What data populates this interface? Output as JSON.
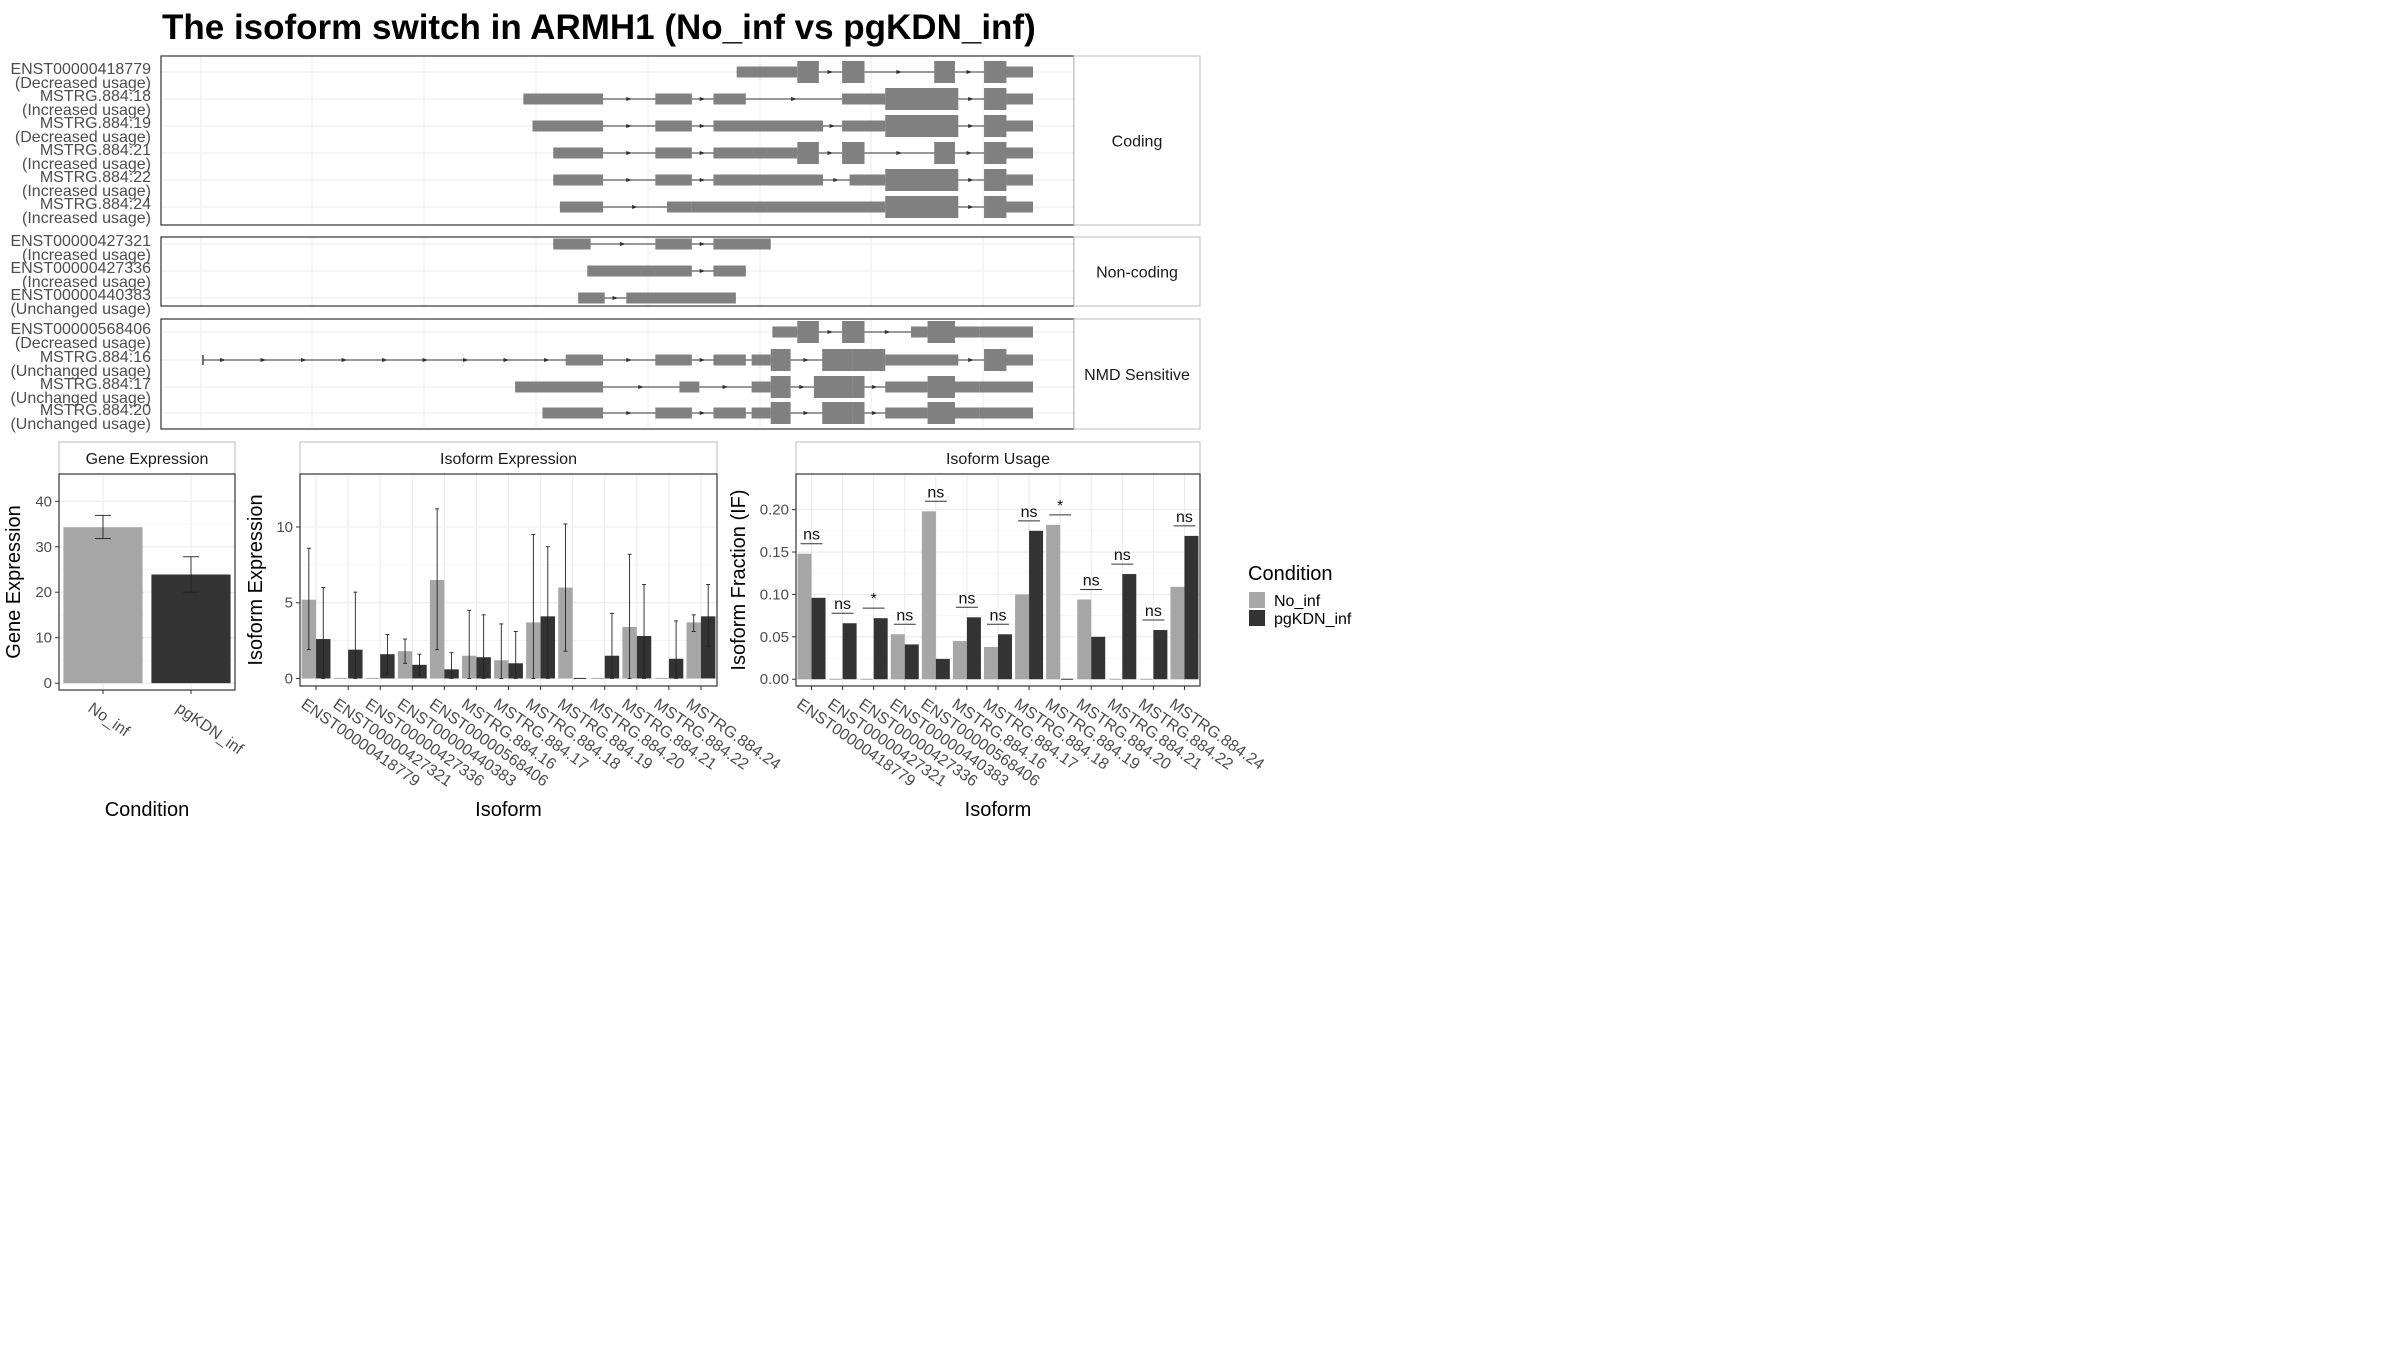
{
  "title": "The isoform switch in ARMH1 (No_inf vs pgKDN_inf)",
  "colors": {
    "No_inf": "#a6a6a6",
    "pgKDN_inf": "#333333",
    "exon": "#808080",
    "strip_text": "#1a1a1a",
    "tick_text": "#4d4d4d"
  },
  "chart_data": [
    {
      "type": "gene_structure",
      "panels": [
        {
          "label": "Coding",
          "tracks": [
            {
              "id": "ENST00000418779",
              "usage": "(Decreased usage)",
              "exons": [
                [
                  0.643,
                  0.716,
                  "utr"
                ],
                [
                  0.716,
                  0.742,
                  "cds"
                ],
                [
                  0.77,
                  0.797,
                  "cds"
                ],
                [
                  0.881,
                  0.906,
                  "cds"
                ],
                [
                  0.941,
                  0.968,
                  "cds"
                ],
                [
                  0.968,
                  1.0,
                  "utr"
                ]
              ]
            },
            {
              "id": "MSTRG.884:18",
              "usage": "(Increased usage)",
              "exons": [
                [
                  0.386,
                  0.482,
                  "utr"
                ],
                [
                  0.545,
                  0.589,
                  "utr"
                ],
                [
                  0.615,
                  0.654,
                  "utr"
                ],
                [
                  0.77,
                  0.822,
                  "utr"
                ],
                [
                  0.822,
                  0.91,
                  "cds"
                ],
                [
                  0.941,
                  0.968,
                  "cds"
                ],
                [
                  0.968,
                  1.0,
                  "utr"
                ]
              ]
            },
            {
              "id": "MSTRG.884:19",
              "usage": "(Decreased usage)",
              "exons": [
                [
                  0.397,
                  0.482,
                  "utr"
                ],
                [
                  0.545,
                  0.589,
                  "utr"
                ],
                [
                  0.615,
                  0.747,
                  "utr"
                ],
                [
                  0.77,
                  0.822,
                  "utr"
                ],
                [
                  0.822,
                  0.91,
                  "cds"
                ],
                [
                  0.941,
                  0.968,
                  "cds"
                ],
                [
                  0.968,
                  1.0,
                  "utr"
                ]
              ]
            },
            {
              "id": "MSTRG.884:21",
              "usage": "(Increased usage)",
              "exons": [
                [
                  0.422,
                  0.482,
                  "utr"
                ],
                [
                  0.545,
                  0.589,
                  "utr"
                ],
                [
                  0.615,
                  0.716,
                  "utr"
                ],
                [
                  0.716,
                  0.742,
                  "cds"
                ],
                [
                  0.77,
                  0.797,
                  "cds"
                ],
                [
                  0.881,
                  0.906,
                  "cds"
                ],
                [
                  0.941,
                  0.968,
                  "cds"
                ],
                [
                  0.968,
                  1.0,
                  "utr"
                ]
              ]
            },
            {
              "id": "MSTRG.884:22",
              "usage": "(Increased usage)",
              "exons": [
                [
                  0.422,
                  0.482,
                  "utr"
                ],
                [
                  0.545,
                  0.589,
                  "utr"
                ],
                [
                  0.615,
                  0.747,
                  "utr"
                ],
                [
                  0.779,
                  0.822,
                  "utr"
                ],
                [
                  0.822,
                  0.91,
                  "cds"
                ],
                [
                  0.941,
                  0.968,
                  "cds"
                ],
                [
                  0.968,
                  1.0,
                  "utr"
                ]
              ]
            },
            {
              "id": "MSTRG.884:24",
              "usage": "(Increased usage)",
              "exons": [
                [
                  0.43,
                  0.482,
                  "utr"
                ],
                [
                  0.559,
                  0.589,
                  "utr"
                ],
                [
                  0.589,
                  0.822,
                  "utr"
                ],
                [
                  0.822,
                  0.91,
                  "cds"
                ],
                [
                  0.941,
                  0.968,
                  "cds"
                ],
                [
                  0.968,
                  1.0,
                  "utr"
                ]
              ]
            }
          ]
        },
        {
          "label": "Non-coding",
          "tracks": [
            {
              "id": "ENST00000427321",
              "usage": "(Increased usage)",
              "exons": [
                [
                  0.422,
                  0.467,
                  "utr"
                ],
                [
                  0.545,
                  0.589,
                  "utr"
                ],
                [
                  0.615,
                  0.684,
                  "utr"
                ]
              ]
            },
            {
              "id": "ENST00000427336",
              "usage": "(Increased usage)",
              "exons": [
                [
                  0.463,
                  0.589,
                  "utr"
                ],
                [
                  0.615,
                  0.654,
                  "utr"
                ]
              ]
            },
            {
              "id": "ENST00000440383",
              "usage": "(Unchanged usage)",
              "exons": [
                [
                  0.452,
                  0.484,
                  "utr"
                ],
                [
                  0.51,
                  0.642,
                  "utr"
                ]
              ]
            }
          ]
        },
        {
          "label": "NMD Sensitive",
          "tracks": [
            {
              "id": "ENST00000568406",
              "usage": "(Decreased usage)",
              "exons": [
                [
                  0.686,
                  0.716,
                  "utr"
                ],
                [
                  0.716,
                  0.742,
                  "cds"
                ],
                [
                  0.77,
                  0.797,
                  "cds"
                ],
                [
                  0.853,
                  0.873,
                  "utr"
                ],
                [
                  0.873,
                  0.906,
                  "cds"
                ],
                [
                  0.906,
                  0.936,
                  "utr"
                ],
                [
                  0.936,
                  1.0,
                  "utr"
                ]
              ]
            },
            {
              "id": "MSTRG.884:16",
              "usage": "(Unchanged usage)",
              "exons": [
                [
                  0.437,
                  0.482,
                  "utr"
                ],
                [
                  0.545,
                  0.589,
                  "utr"
                ],
                [
                  0.615,
                  0.654,
                  "utr"
                ],
                [
                  0.661,
                  0.684,
                  "utr"
                ],
                [
                  0.684,
                  0.708,
                  "cds"
                ],
                [
                  0.746,
                  0.782,
                  "cds"
                ],
                [
                  0.782,
                  0.822,
                  "cds"
                ],
                [
                  0.822,
                  0.91,
                  "utr"
                ],
                [
                  0.941,
                  0.968,
                  "cds"
                ],
                [
                  0.968,
                  1.0,
                  "utr"
                ]
              ]
            },
            {
              "id": "MSTRG.884:17",
              "usage": "(Unchanged usage)",
              "exons": [
                [
                  0.376,
                  0.482,
                  "utr"
                ],
                [
                  0.574,
                  0.598,
                  "utr"
                ],
                [
                  0.661,
                  0.684,
                  "utr"
                ],
                [
                  0.684,
                  0.708,
                  "cds"
                ],
                [
                  0.736,
                  0.782,
                  "cds"
                ],
                [
                  0.782,
                  0.797,
                  "cds"
                ],
                [
                  0.822,
                  0.873,
                  "utr"
                ],
                [
                  0.873,
                  0.906,
                  "cds"
                ],
                [
                  0.906,
                  0.936,
                  "utr"
                ],
                [
                  0.936,
                  1.0,
                  "utr"
                ]
              ]
            },
            {
              "id": "MSTRG.884:20",
              "usage": "(Unchanged usage)",
              "exons": [
                [
                  0.409,
                  0.482,
                  "utr"
                ],
                [
                  0.545,
                  0.589,
                  "utr"
                ],
                [
                  0.615,
                  0.654,
                  "utr"
                ],
                [
                  0.661,
                  0.684,
                  "utr"
                ],
                [
                  0.684,
                  0.708,
                  "cds"
                ],
                [
                  0.746,
                  0.782,
                  "cds"
                ],
                [
                  0.782,
                  0.797,
                  "cds"
                ],
                [
                  0.822,
                  0.873,
                  "utr"
                ],
                [
                  0.873,
                  0.906,
                  "cds"
                ],
                [
                  0.906,
                  0.936,
                  "utr"
                ],
                [
                  0.936,
                  1.0,
                  "utr"
                ]
              ]
            }
          ]
        }
      ]
    },
    {
      "type": "bar",
      "strip": "Gene Expression",
      "xlabel": "Condition",
      "ylabel": "Gene Expression",
      "ylim": [
        -1.5,
        46
      ],
      "yticks": [
        0,
        10,
        20,
        30,
        40
      ],
      "grid": true,
      "categories": [
        "No_inf",
        "pgKDN_inf"
      ],
      "values": [
        34.3,
        23.9
      ],
      "err_low": [
        31.8,
        20.0
      ],
      "err_high": [
        36.9,
        27.8
      ]
    },
    {
      "type": "bar",
      "strip": "Isoform Expression",
      "xlabel": "Isoform",
      "ylabel": "Isoform Expression",
      "ylim": [
        -0.5,
        13.5
      ],
      "yticks": [
        0,
        5,
        10
      ],
      "grid": true,
      "categories": [
        "ENST00000418779",
        "ENST00000427321",
        "ENST00000427336",
        "ENST00000440383",
        "ENST00000568406",
        "MSTRG.884.16",
        "MSTRG.884.17",
        "MSTRG.884.18",
        "MSTRG.884.19",
        "MSTRG.884.20",
        "MSTRG.884.21",
        "MSTRG.884.22",
        "MSTRG.884.24"
      ],
      "series": [
        {
          "name": "No_inf",
          "values": [
            5.2,
            0.0,
            0.0,
            1.8,
            6.5,
            1.5,
            1.2,
            3.7,
            6.0,
            0.0,
            3.4,
            0.0,
            3.7
          ],
          "err_low": [
            1.9,
            0.0,
            0.0,
            1.0,
            1.9,
            0.0,
            0.0,
            0.0,
            1.8,
            0.0,
            0.0,
            0.0,
            3.1
          ],
          "err_high": [
            8.6,
            0.0,
            0.0,
            2.6,
            11.2,
            4.5,
            3.6,
            9.5,
            10.2,
            0.0,
            8.2,
            0.0,
            4.2
          ]
        },
        {
          "name": "pgKDN_inf",
          "values": [
            2.6,
            1.9,
            1.6,
            0.9,
            0.6,
            1.4,
            1.0,
            4.1,
            0.0,
            1.5,
            2.8,
            1.3,
            4.1
          ],
          "err_low": [
            0.0,
            0.0,
            0.3,
            0.2,
            0.0,
            0.0,
            0.0,
            0.0,
            0.0,
            0.0,
            0.0,
            0.0,
            2.1
          ],
          "err_high": [
            6.0,
            5.7,
            2.9,
            1.6,
            1.7,
            4.2,
            3.1,
            8.7,
            0.0,
            4.3,
            6.2,
            3.8,
            6.2
          ]
        }
      ]
    },
    {
      "type": "bar",
      "strip": "Isoform Usage",
      "xlabel": "Isoform",
      "ylabel": "Isoform Fraction (IF)",
      "ylim": [
        -0.008,
        0.242
      ],
      "yticks": [
        "0.00",
        "0.05",
        "0.10",
        "0.15",
        "0.20"
      ],
      "grid": true,
      "categories": [
        "ENST00000418779",
        "ENST00000427321",
        "ENST00000427336",
        "ENST00000440383",
        "ENST00000568406",
        "MSTRG.884.16",
        "MSTRG.884.17",
        "MSTRG.884.18",
        "MSTRG.884.19",
        "MSTRG.884.20",
        "MSTRG.884.21",
        "MSTRG.884.22",
        "MSTRG.884.24"
      ],
      "series": [
        {
          "name": "No_inf",
          "values": [
            0.148,
            0.0,
            0.0,
            0.053,
            0.198,
            0.045,
            0.038,
            0.1,
            0.182,
            0.094,
            0.0,
            0.0,
            0.109
          ]
        },
        {
          "name": "pgKDN_inf",
          "values": [
            0.096,
            0.066,
            0.072,
            0.041,
            0.024,
            0.073,
            0.053,
            0.175,
            0.0,
            0.05,
            0.124,
            0.058,
            0.169
          ]
        }
      ],
      "annotations": [
        "ns",
        "ns",
        "*",
        "ns",
        "ns",
        "ns",
        "ns",
        "ns",
        "*",
        "ns",
        "ns",
        "ns",
        "ns"
      ]
    }
  ],
  "legend": {
    "title": "Condition",
    "items": [
      "No_inf",
      "pgKDN_inf"
    ]
  }
}
